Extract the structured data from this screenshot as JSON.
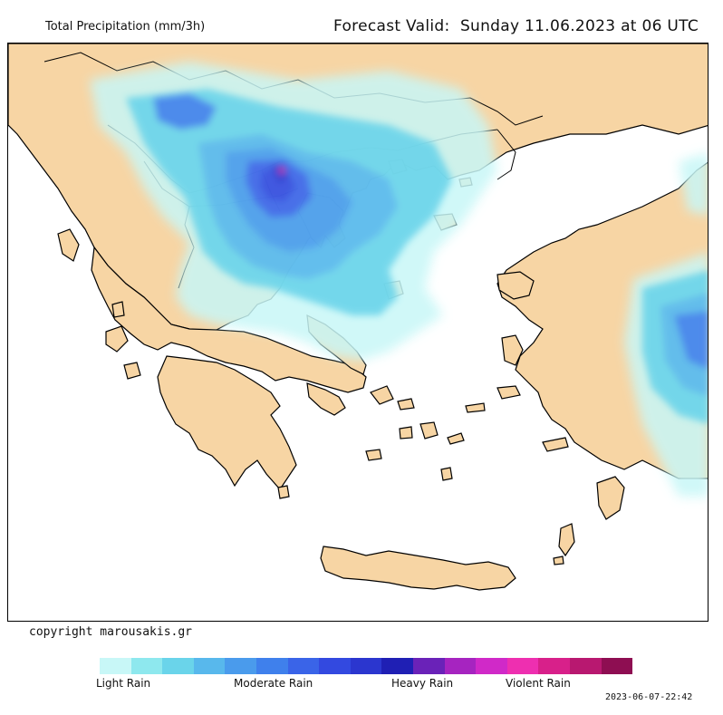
{
  "header": {
    "left_title": "Total Precipitation (mm/3h)",
    "right_title": "Forecast Valid:  Sunday 11.06.2023 at 06 UTC"
  },
  "map": {
    "land_color": "#f7d5a4",
    "sea_color": "#ffffff",
    "border_color": "#000000"
  },
  "footer": {
    "copyright": "copyright marousakis.gr",
    "timestamp": "2023-06-07-22:42"
  },
  "legend": {
    "colors": [
      "#c8f7f7",
      "#8ee8ee",
      "#6ad4ea",
      "#58b8ec",
      "#4a9bec",
      "#3f80ec",
      "#3a64e8",
      "#3349e0",
      "#2b36cf",
      "#1f1fb4",
      "#6a22b8",
      "#a624c0",
      "#d029c8",
      "#ee2fb0",
      "#d8208a",
      "#b81870",
      "#8e0e52"
    ],
    "labels": [
      "Light Rain",
      "Moderate Rain",
      "Heavy Rain",
      "Violent Rain"
    ]
  }
}
